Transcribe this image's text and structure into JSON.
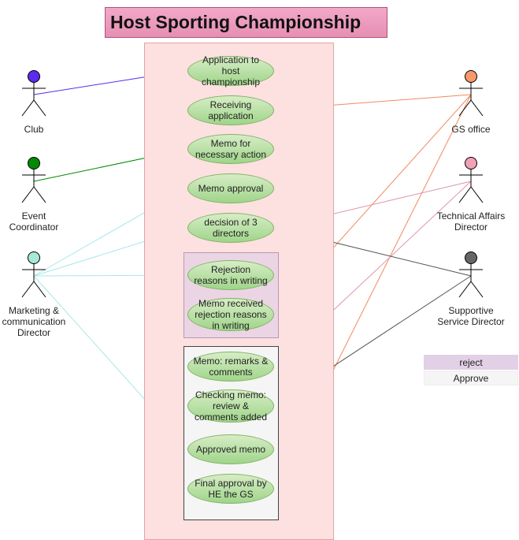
{
  "title": "Host Sporting Championship",
  "actors": {
    "club": {
      "label": "Club",
      "color": "#5b2bf0"
    },
    "event_coordinator": {
      "label": "Event\nCoordinator",
      "color": "#008a00"
    },
    "marketing": {
      "label": "Marketing &\ncommunication\nDirector",
      "color": "#a7e8d7"
    },
    "gs_office": {
      "label": "GS office",
      "color": "#f7996b"
    },
    "technical": {
      "label": "Technical Affairs\nDirector",
      "color": "#f2a0b4"
    },
    "supportive": {
      "label": "Supportive\nService Director",
      "color": "#666666"
    }
  },
  "use_cases": {
    "uc1": "Application to host championship",
    "uc2": "Receiving application",
    "uc3": "Memo for necessary action",
    "uc4": "Memo approval",
    "uc5": "decision of 3 directors",
    "uc6": "Rejection reasons in writing",
    "uc7": "Memo received rejection reasons in writing",
    "uc8": "Memo: remarks & comments",
    "uc9": "Checking memo: review & comments added",
    "uc10": "Approved memo",
    "uc11": "Final approval by HE the GS"
  },
  "legend": {
    "reject": "reject",
    "approve": "Approve"
  },
  "colors": {
    "club_line": "#5b2bf0",
    "event_line": "#008a00",
    "marketing_line": "#a7e8e8",
    "gs_line": "#f08a5d",
    "technical_line": "#e393ad",
    "supportive_line": "#555555"
  }
}
